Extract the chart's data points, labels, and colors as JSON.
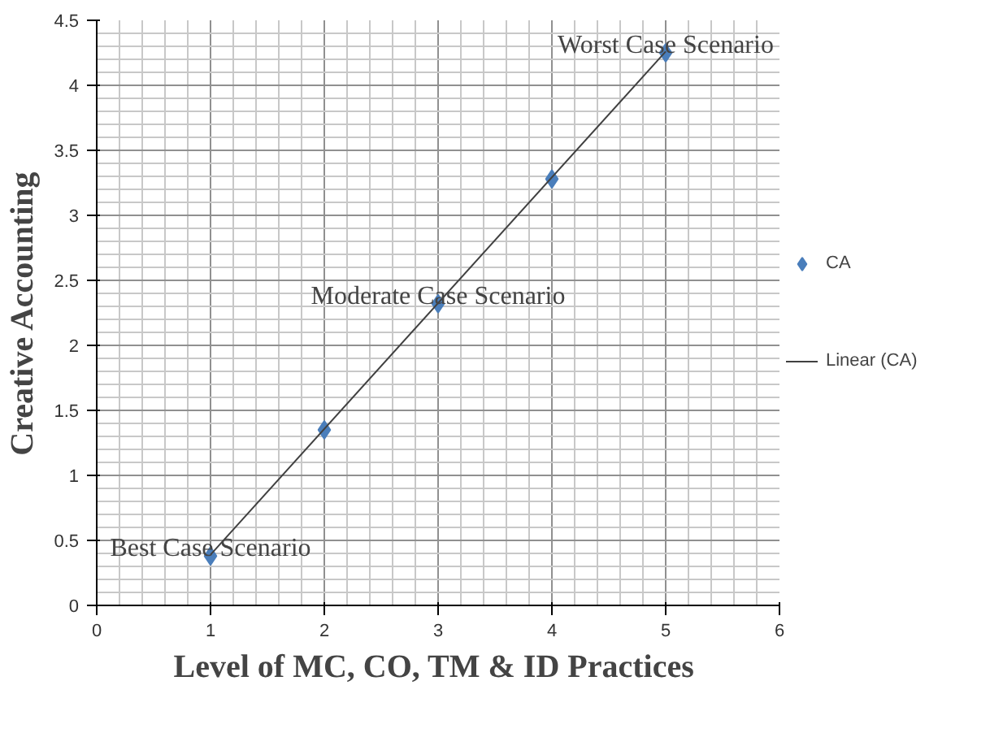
{
  "chart_data": {
    "type": "scatter",
    "xlabel": "Level of MC, CO, TM & ID  Practices",
    "ylabel": "Creative Accounting",
    "x": [
      1,
      2,
      3,
      4,
      5
    ],
    "series": [
      {
        "name": "CA",
        "color": "#4a7ebb",
        "values": [
          0.38,
          1.35,
          2.32,
          3.28,
          4.25
        ],
        "marker": "diamond"
      },
      {
        "name": "Linear (CA)",
        "type": "line",
        "color": "#404040",
        "x": [
          1,
          5
        ],
        "values": [
          0.39,
          4.26
        ]
      }
    ],
    "xlim": [
      0,
      6
    ],
    "xticks": [
      0,
      1,
      2,
      3,
      4,
      5,
      6
    ],
    "ylim": [
      0,
      4.5
    ],
    "yticks": [
      0,
      0.5,
      1,
      1.5,
      2,
      2.5,
      3,
      3.5,
      4,
      4.5
    ],
    "grid": true,
    "legend": "right",
    "annotations": [
      {
        "text": "Best Case Scenario",
        "x": 1,
        "y": 0.38
      },
      {
        "text": "Moderate Case Scenario",
        "x": 3,
        "y": 2.32
      },
      {
        "text": "Worst Case Scenario",
        "x": 5,
        "y": 4.25
      }
    ]
  }
}
